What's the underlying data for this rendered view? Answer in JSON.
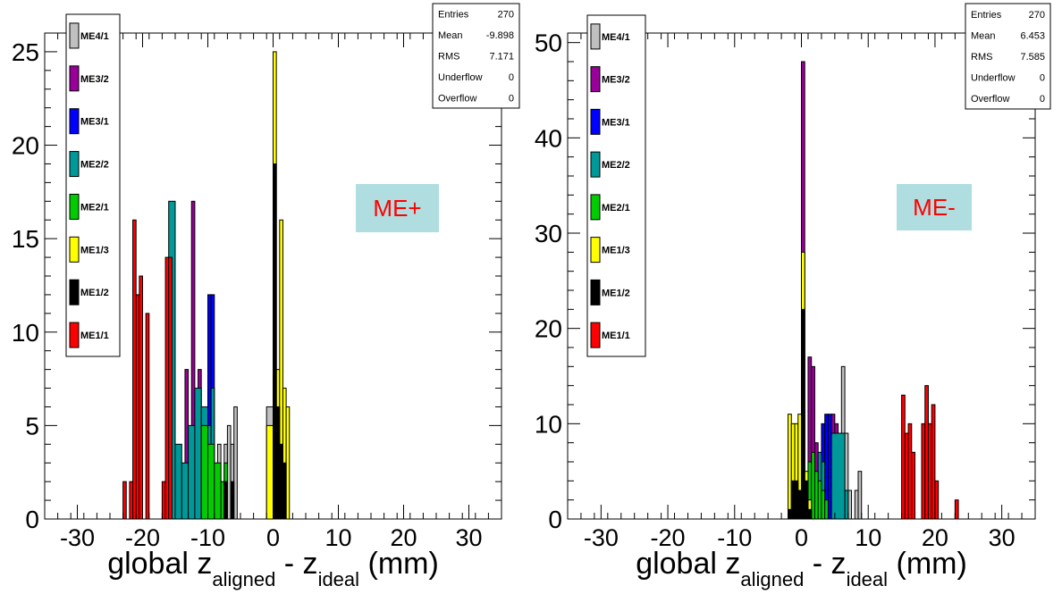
{
  "colors": {
    "ME4/1": "#c0c0c0",
    "ME3/2": "#990099",
    "ME3/1": "#0000ff",
    "ME2/2": "#009999",
    "ME2/1": "#00cc00",
    "ME1/3": "#ffff00",
    "ME1/2": "#000000",
    "ME1/1": "#ff0000",
    "label_box": "#b0dde0",
    "label_text": "#ff0000"
  },
  "chart_data": [
    {
      "type": "histogram-stacked",
      "label": "ME+",
      "xlabel": {
        "main": "global z",
        "sub1": "aligned",
        "mid": " - z",
        "sub2": "ideal",
        "tail": " (mm)"
      },
      "xlim": [
        -35,
        35
      ],
      "ylim": [
        0,
        26
      ],
      "xticks": [
        -30,
        -20,
        -10,
        0,
        10,
        20,
        30
      ],
      "yticks": [
        0,
        5,
        10,
        15,
        20,
        25
      ],
      "legend": [
        "ME4/1",
        "ME3/2",
        "ME3/1",
        "ME2/2",
        "ME2/1",
        "ME1/3",
        "ME1/2",
        "ME1/1"
      ],
      "stats": [
        {
          "label": "Entries",
          "value": "270"
        },
        {
          "label": "Mean",
          "value": "-9.898"
        },
        {
          "label": "RMS",
          "value": "7.171"
        },
        {
          "label": "Underflow",
          "value": "0"
        },
        {
          "label": "Overflow",
          "value": "0"
        }
      ],
      "layers": [
        {
          "name": "ME4/1",
          "steps": [
            [
              -8.5,
              -8,
              4
            ],
            [
              -7.5,
              -7,
              4
            ],
            [
              -7,
              -6.5,
              5
            ],
            [
              -6.5,
              -6,
              4
            ],
            [
              -6,
              -5.5,
              6
            ],
            [
              -1,
              0,
              6
            ]
          ]
        },
        {
          "name": "ME3/2",
          "steps": [
            [
              -13.5,
              -13,
              8
            ],
            [
              -12.5,
              -12,
              17
            ],
            [
              -11.5,
              -11,
              8
            ]
          ]
        },
        {
          "name": "ME3/1",
          "steps": [
            [
              -10,
              -9.5,
              12
            ],
            [
              -9.5,
              -9,
              12
            ]
          ]
        },
        {
          "name": "ME2/2",
          "steps": [
            [
              -16,
              -15,
              17
            ],
            [
              -15,
              -14,
              4
            ],
            [
              -14,
              -13,
              3
            ],
            [
              -13,
              -12,
              5
            ],
            [
              -12,
              -11,
              7
            ],
            [
              -11,
              -10,
              6
            ],
            [
              -10,
              -9.5,
              5
            ],
            [
              -9.5,
              -9,
              7
            ]
          ]
        },
        {
          "name": "ME2/1",
          "steps": [
            [
              -11,
              -10,
              5
            ],
            [
              -10,
              -9,
              4
            ],
            [
              -9,
              -8,
              3
            ],
            [
              -8,
              -7.5,
              2
            ],
            [
              -7.5,
              -7,
              3
            ]
          ]
        },
        {
          "name": "ME1/3",
          "steps": [
            [
              -1,
              0,
              5
            ],
            [
              0,
              0.5,
              25
            ],
            [
              0.5,
              1,
              8
            ],
            [
              1,
              1.5,
              16
            ],
            [
              1.5,
              2,
              7
            ],
            [
              2,
              2.5,
              6
            ]
          ]
        },
        {
          "name": "ME1/2",
          "steps": [
            [
              -7.5,
              -7,
              2
            ],
            [
              -6.5,
              -6,
              2
            ],
            [
              0,
              0.5,
              19
            ],
            [
              0.5,
              1,
              6
            ],
            [
              1,
              1.5,
              4
            ],
            [
              1.5,
              2,
              3
            ]
          ]
        },
        {
          "name": "ME1/1",
          "steps": [
            [
              -23,
              -22.5,
              2
            ],
            [
              -22,
              -21.5,
              2
            ],
            [
              -21.5,
              -21,
              16
            ],
            [
              -21,
              -20.5,
              12
            ],
            [
              -20.5,
              -20,
              13
            ],
            [
              -19.5,
              -19,
              11
            ],
            [
              -17,
              -16.5,
              2
            ],
            [
              -16.5,
              -16,
              14
            ],
            [
              -16,
              -15.5,
              14
            ]
          ]
        }
      ]
    },
    {
      "type": "histogram-stacked",
      "label": "ME-",
      "xlabel": {
        "main": "global z",
        "sub1": "aligned",
        "mid": " - z",
        "sub2": "ideal",
        "tail": " (mm)"
      },
      "xlim": [
        -35,
        35
      ],
      "ylim": [
        0,
        51
      ],
      "xticks": [
        -30,
        -20,
        -10,
        0,
        10,
        20,
        30
      ],
      "yticks": [
        0,
        10,
        20,
        30,
        40,
        50
      ],
      "legend": [
        "ME4/1",
        "ME3/2",
        "ME3/1",
        "ME2/2",
        "ME2/1",
        "ME1/3",
        "ME1/2",
        "ME1/1"
      ],
      "stats": [
        {
          "label": "Entries",
          "value": "270"
        },
        {
          "label": "Mean",
          "value": "6.453"
        },
        {
          "label": "RMS",
          "value": "7.585"
        },
        {
          "label": "Underflow",
          "value": "0"
        },
        {
          "label": "Overflow",
          "value": "0"
        }
      ],
      "layers": [
        {
          "name": "ME4/1",
          "steps": [
            [
              5,
              5.5,
              9
            ],
            [
              6,
              6.5,
              16
            ],
            [
              6.5,
              7,
              9
            ],
            [
              7,
              7.5,
              3
            ],
            [
              8,
              8.5,
              3
            ],
            [
              8.5,
              9,
              5
            ]
          ]
        },
        {
          "name": "ME3/2",
          "steps": [
            [
              0,
              0.5,
              48
            ],
            [
              1,
              1.5,
              17
            ],
            [
              1.5,
              2,
              16
            ],
            [
              2,
              2.5,
              8
            ],
            [
              4.5,
              5,
              11
            ],
            [
              5,
              5.5,
              10
            ]
          ]
        },
        {
          "name": "ME3/1",
          "steps": [
            [
              3,
              3.5,
              10
            ],
            [
              3.5,
              4,
              11
            ],
            [
              4,
              4.5,
              11
            ]
          ]
        },
        {
          "name": "ME2/2",
          "steps": [
            [
              2.5,
              3,
              7
            ],
            [
              3,
              3.5,
              6
            ],
            [
              4.5,
              6.5,
              9
            ],
            [
              6.5,
              7,
              3
            ]
          ]
        },
        {
          "name": "ME2/1",
          "steps": [
            [
              1,
              1.5,
              6
            ],
            [
              1.5,
              2,
              7
            ],
            [
              2,
              2.5,
              5
            ],
            [
              2.5,
              3,
              4
            ],
            [
              3,
              3.5,
              3
            ],
            [
              3.5,
              4,
              2
            ]
          ]
        },
        {
          "name": "ME1/3",
          "steps": [
            [
              -2,
              -1.5,
              11
            ],
            [
              -1.5,
              -1,
              10
            ],
            [
              -1,
              -0.5,
              10
            ],
            [
              -0.5,
              0,
              11
            ],
            [
              0,
              0.5,
              28
            ],
            [
              0.5,
              1,
              5
            ],
            [
              1,
              1.5,
              2
            ]
          ]
        },
        {
          "name": "ME1/2",
          "steps": [
            [
              -2,
              -1.5,
              1
            ],
            [
              -1.5,
              -1,
              4
            ],
            [
              -1,
              -0.5,
              4
            ],
            [
              -0.5,
              0,
              3
            ],
            [
              0,
              0.5,
              22
            ],
            [
              0.5,
              1,
              4
            ],
            [
              1,
              1.5,
              1
            ]
          ]
        },
        {
          "name": "ME1/1",
          "steps": [
            [
              15,
              15.5,
              13
            ],
            [
              15.5,
              16,
              9
            ],
            [
              16,
              16.5,
              10
            ],
            [
              16.5,
              17,
              7
            ],
            [
              18,
              18.5,
              10
            ],
            [
              18.5,
              19,
              14
            ],
            [
              19,
              19.5,
              10
            ],
            [
              19.5,
              20,
              12
            ],
            [
              20,
              20.5,
              4
            ],
            [
              23,
              23.5,
              2
            ]
          ]
        }
      ]
    }
  ]
}
